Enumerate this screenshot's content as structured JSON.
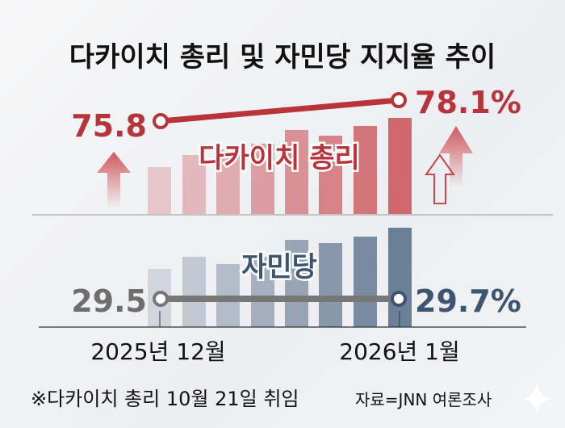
{
  "title": "다카이치 총리 및 자민당 지지율 추이",
  "colors": {
    "pm": "#b8343a",
    "ldp_start": "#707070",
    "ldp_end": "#3d5570",
    "text": "#111111"
  },
  "chart_data": {
    "type": "line",
    "title": "다카이치 총리 및 자민당 지지율 추이",
    "categories": [
      "2025년 12월",
      "2026년 1월"
    ],
    "unit": "%",
    "series": [
      {
        "name": "다카이치 총리",
        "values": [
          75.8,
          78.1
        ],
        "labels": [
          "75.8",
          "78.1%"
        ]
      },
      {
        "name": "자민당",
        "values": [
          29.5,
          29.7
        ],
        "labels": [
          "29.5",
          "29.7%"
        ]
      }
    ],
    "decorations": [
      "up-arrow-icon",
      "decorative bars"
    ]
  },
  "footnote": "※다카이치 총리 10월 21일 취임",
  "source": "자료=JNN 여론조사"
}
